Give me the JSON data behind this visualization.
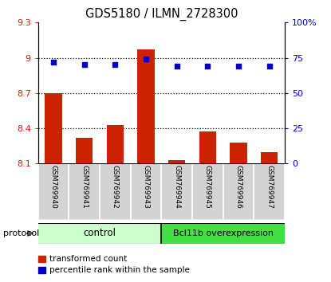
{
  "title": "GDS5180 / ILMN_2728300",
  "samples": [
    "GSM769940",
    "GSM769941",
    "GSM769942",
    "GSM769943",
    "GSM769944",
    "GSM769945",
    "GSM769946",
    "GSM769947"
  ],
  "transformed_counts": [
    8.7,
    8.32,
    8.43,
    9.07,
    8.13,
    8.37,
    8.28,
    8.2
  ],
  "percentile_ranks": [
    72,
    70,
    70,
    74,
    69,
    69,
    69,
    69
  ],
  "bar_color": "#cc2200",
  "dot_color": "#0000cc",
  "ylim_left": [
    8.1,
    9.3
  ],
  "ylim_right": [
    0,
    100
  ],
  "yticks_left": [
    8.1,
    8.4,
    8.7,
    9.0,
    9.3
  ],
  "yticks_right": [
    0,
    25,
    50,
    75,
    100
  ],
  "ytick_labels_left": [
    "8.1",
    "8.4",
    "8.7",
    "9",
    "9.3"
  ],
  "ytick_labels_right": [
    "0",
    "25",
    "50",
    "75",
    "100%"
  ],
  "grid_values": [
    8.4,
    8.7,
    9.0
  ],
  "control_label": "control",
  "overexpression_label": "Bcl11b overexpression",
  "protocol_label": "protocol",
  "legend_red_label": "transformed count",
  "legend_blue_label": "percentile rank within the sample",
  "control_color": "#ccffcc",
  "overexpression_color": "#44dd44",
  "bar_base": 8.1,
  "bar_width": 0.55,
  "n_control": 4,
  "n_total": 8
}
